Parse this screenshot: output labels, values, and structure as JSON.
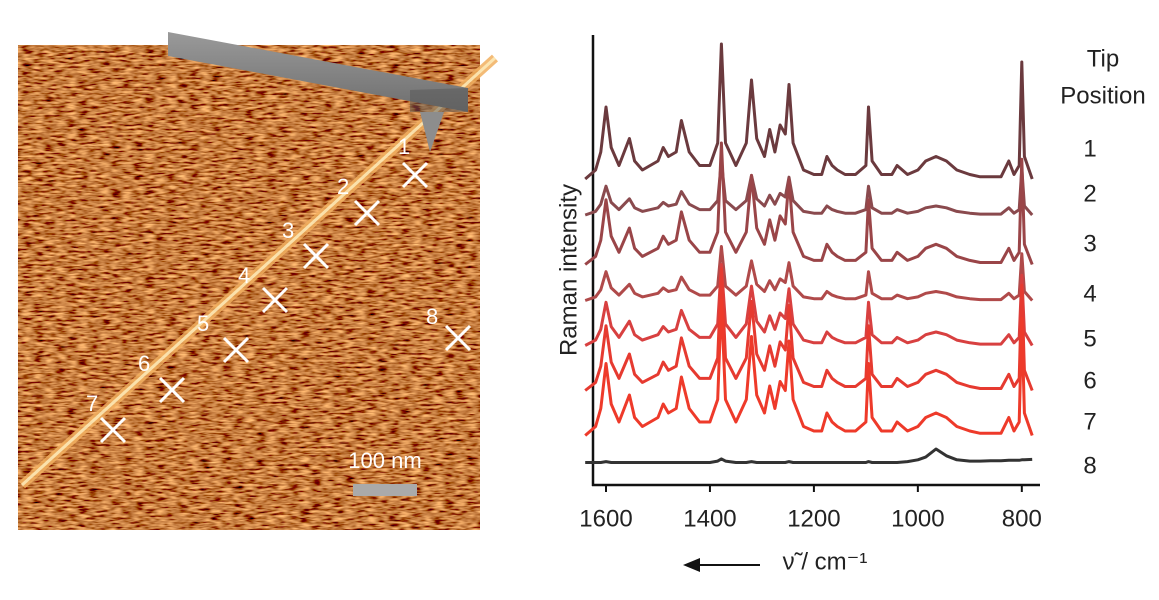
{
  "afm_image": {
    "markers": [
      "1",
      "2",
      "3",
      "4",
      "5",
      "6",
      "7",
      "8"
    ],
    "scale_bar": "100 nm"
  },
  "chart_data": {
    "type": "line",
    "y_label": "Raman intensity",
    "x_label": "ν̃ / cm⁻¹",
    "legend_title": [
      "Tip",
      "Position"
    ],
    "xlim": [
      1625,
      765
    ],
    "xticks": [
      1600,
      1400,
      1200,
      1000,
      800
    ],
    "ylim": [
      0,
      100
    ],
    "x": [
      1640,
      1620,
      1610,
      1600,
      1590,
      1575,
      1555,
      1545,
      1530,
      1500,
      1490,
      1480,
      1465,
      1455,
      1440,
      1420,
      1400,
      1385,
      1378,
      1370,
      1350,
      1330,
      1320,
      1310,
      1295,
      1285,
      1275,
      1265,
      1255,
      1248,
      1240,
      1220,
      1200,
      1185,
      1175,
      1165,
      1155,
      1140,
      1120,
      1100,
      1095,
      1088,
      1070,
      1050,
      1040,
      1020,
      1000,
      985,
      965,
      945,
      925,
      900,
      880,
      860,
      840,
      825,
      815,
      805,
      800,
      795,
      780
    ],
    "series": [
      {
        "name": "1",
        "color": "#6b3a3e",
        "values": [
          68,
          70,
          74,
          84,
          75,
          71,
          77,
          72,
          70,
          72,
          75,
          73,
          74,
          81,
          74,
          71,
          71,
          76,
          98,
          76,
          71,
          76,
          90,
          77,
          73,
          79,
          74,
          80,
          78,
          89,
          76,
          70,
          69,
          69,
          73,
          71,
          70,
          69,
          69,
          71,
          84,
          72,
          69,
          69,
          71,
          69,
          70,
          72,
          73,
          72,
          70,
          69,
          68.5,
          68.5,
          68.5,
          72,
          69,
          71,
          94,
          73,
          68
        ]
      },
      {
        "name": "2",
        "color": "#8a4a4e",
        "values": [
          60,
          60.8,
          62.4,
          66.4,
          62.8,
          61.2,
          63.6,
          61.6,
          60.8,
          61.6,
          62.8,
          62,
          62.4,
          65.2,
          62.4,
          61.2,
          61.2,
          63.2,
          72,
          63.2,
          61.2,
          63.2,
          68.8,
          63.6,
          62,
          64.4,
          62.4,
          64.8,
          64,
          68.4,
          63.2,
          60.8,
          60.4,
          60.4,
          62,
          61.2,
          60.8,
          60.4,
          60.4,
          61.2,
          66.4,
          61.6,
          60.4,
          60.4,
          61.2,
          60.4,
          60.8,
          61.6,
          62,
          61.6,
          60.8,
          60.4,
          60.2,
          60.2,
          60.2,
          61.6,
          60.4,
          61.2,
          70.4,
          62,
          60
        ]
      },
      {
        "name": "3",
        "color": "#9a4548",
        "values": [
          49,
          50.8,
          54.4,
          63.4,
          55.3,
          51.7,
          57.1,
          52.6,
          50.8,
          52.6,
          55.3,
          53.5,
          54.4,
          60.7,
          54.4,
          51.7,
          51.7,
          56.2,
          76,
          56.2,
          51.7,
          56.2,
          68.8,
          57.1,
          53.5,
          58.9,
          54.4,
          59.8,
          58,
          67.9,
          56.2,
          50.8,
          49.9,
          49.9,
          53.5,
          51.7,
          50.8,
          49.9,
          49.9,
          51.7,
          63.4,
          52.6,
          49.9,
          49.9,
          51.7,
          49.9,
          50.8,
          52.6,
          53.5,
          52.6,
          50.8,
          49.9,
          49.45,
          49.45,
          49.45,
          52.6,
          49.9,
          51.7,
          72.4,
          53.5,
          49
        ]
      },
      {
        "name": "4",
        "color": "#b04a4a",
        "values": [
          41,
          41.8,
          43.4,
          47.4,
          43.8,
          42.2,
          44.6,
          42.6,
          41.8,
          42.6,
          43.8,
          43,
          43.4,
          46.2,
          43.4,
          42.2,
          42.2,
          44.2,
          53,
          44.2,
          42.2,
          44.2,
          49.8,
          44.6,
          43,
          45.4,
          43.4,
          45.8,
          45,
          49.4,
          44.2,
          41.8,
          41.4,
          41.4,
          43,
          42.2,
          41.8,
          41.4,
          41.4,
          42.2,
          47.4,
          42.6,
          41.4,
          41.4,
          42.2,
          41.4,
          41.8,
          42.6,
          43,
          42.6,
          41.8,
          41.4,
          41.2,
          41.2,
          41.2,
          42.6,
          41.4,
          42.2,
          51.4,
          43,
          41
        ]
      },
      {
        "name": "5",
        "color": "#d84040",
        "values": [
          31,
          32.2,
          34.6,
          40.6,
          35.2,
          32.8,
          36.4,
          33.4,
          32.2,
          33.4,
          35.2,
          34,
          34.6,
          38.8,
          34.6,
          32.8,
          32.8,
          35.8,
          49,
          35.8,
          32.8,
          35.8,
          44.2,
          36.4,
          34,
          37.6,
          34.6,
          38.2,
          37,
          43.6,
          35.8,
          32.2,
          31.6,
          31.6,
          34,
          32.8,
          32.2,
          31.6,
          31.6,
          32.8,
          40.6,
          33.4,
          31.6,
          31.6,
          32.8,
          31.6,
          32.2,
          33.4,
          34,
          33.4,
          32.2,
          31.6,
          31.3,
          31.3,
          31.3,
          33.4,
          31.6,
          32.8,
          46.6,
          34,
          31
        ]
      },
      {
        "name": "6",
        "color": "#e63a30",
        "values": [
          21,
          22.8,
          26.4,
          35.4,
          27.3,
          23.7,
          29.1,
          24.6,
          22.8,
          24.6,
          27.3,
          25.5,
          26.4,
          32.7,
          26.4,
          23.7,
          23.7,
          28.2,
          48,
          28.2,
          23.7,
          28.2,
          40.8,
          29.1,
          25.5,
          30.9,
          26.4,
          31.8,
          30,
          39.9,
          28.2,
          22.8,
          21.9,
          21.9,
          25.5,
          23.7,
          22.8,
          21.9,
          21.9,
          23.7,
          35.4,
          24.6,
          21.9,
          21.9,
          23.7,
          21.9,
          22.8,
          24.6,
          25.5,
          24.6,
          22.8,
          21.9,
          21.45,
          21.45,
          21.45,
          24.6,
          21.9,
          23.7,
          44.4,
          25.5,
          21
        ]
      },
      {
        "name": "7",
        "color": "#ee3a2a",
        "values": [
          11,
          13,
          17,
          27,
          18,
          14,
          20,
          15,
          13,
          15,
          18,
          16,
          17,
          24,
          17,
          14,
          14,
          19,
          41,
          19,
          14,
          19,
          33,
          20,
          16,
          22,
          17,
          23,
          21,
          32,
          19,
          13,
          12,
          12,
          16,
          14,
          13,
          12,
          12,
          14,
          27,
          15,
          12,
          12,
          14,
          12,
          13,
          15,
          16,
          15,
          13,
          12,
          11.5,
          11.5,
          11.5,
          15,
          12,
          14,
          37,
          16,
          11
        ]
      },
      {
        "name": "8",
        "color": "#333333",
        "values": [
          5,
          5,
          5,
          5.2,
          5,
          5,
          5,
          5,
          5,
          5,
          5,
          5,
          5,
          5,
          5,
          5,
          5,
          5.3,
          5.8,
          5.3,
          5,
          5,
          5.2,
          5,
          5,
          5,
          5,
          5,
          5,
          5.2,
          5,
          5,
          5,
          5,
          5,
          5,
          5,
          5,
          5,
          5,
          5.2,
          5,
          5,
          5,
          5,
          5.2,
          5.6,
          6.2,
          8,
          6.5,
          5.6,
          5.3,
          5.3,
          5.4,
          5.4,
          5.5,
          5.5,
          5.5,
          5.6,
          5.6,
          5.7
        ]
      }
    ]
  }
}
